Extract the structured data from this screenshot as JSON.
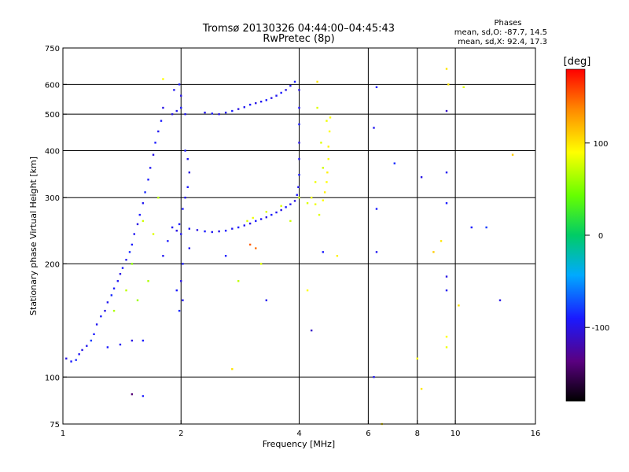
{
  "chart_data": {
    "type": "scatter",
    "title": "Tromsø 20130326 04:44:00–04:45:43",
    "subtitle": "RwPretec (8p)",
    "stats": {
      "heading": "Phases",
      "line_o": "mean, sd,O: -87.7, 14.5",
      "line_x": "mean, sd,X:  92.4, 17.3"
    },
    "xlabel": "Frequency [MHz]",
    "ylabel": "Stationary phase Virtual Height [km]",
    "x_scale": "log",
    "y_scale": "log",
    "xlim": [
      1,
      16
    ],
    "ylim": [
      75,
      750
    ],
    "x_ticks": [
      {
        "v": 1,
        "label": "1"
      },
      {
        "v": 2,
        "label": "2"
      },
      {
        "v": 4,
        "label": "4"
      },
      {
        "v": 6,
        "label": "6"
      },
      {
        "v": 8,
        "label": "8"
      },
      {
        "v": 10,
        "label": "10"
      },
      {
        "v": 16,
        "label": "16"
      }
    ],
    "y_ticks": [
      {
        "v": 75,
        "label": "75"
      },
      {
        "v": 100,
        "label": "100"
      },
      {
        "v": 200,
        "label": "200"
      },
      {
        "v": 300,
        "label": "300"
      },
      {
        "v": 400,
        "label": "400"
      },
      {
        "v": 500,
        "label": "500"
      },
      {
        "v": 600,
        "label": "600"
      },
      {
        "v": 750,
        "label": "750"
      }
    ],
    "x_gridlines": [
      2,
      4,
      6,
      8,
      10
    ],
    "y_gridlines": [
      100,
      200,
      300,
      400,
      500,
      600
    ],
    "colorbar": {
      "label": "[deg]",
      "min": -180,
      "max": 180,
      "ticks": [
        {
          "v": 100,
          "label": "100"
        },
        {
          "v": 0,
          "label": "0"
        },
        {
          "v": -100,
          "label": "-100"
        }
      ]
    },
    "series": [
      {
        "points": [
          [
            1.02,
            112,
            -100
          ],
          [
            1.05,
            110,
            -90
          ],
          [
            1.08,
            111,
            -85
          ],
          [
            1.1,
            115,
            -95
          ],
          [
            1.12,
            118,
            -100
          ],
          [
            1.15,
            121,
            -95
          ],
          [
            1.18,
            125,
            -80
          ],
          [
            1.2,
            130,
            -90
          ],
          [
            1.22,
            138,
            -95
          ],
          [
            1.25,
            145,
            -90
          ],
          [
            1.28,
            150,
            -100
          ],
          [
            1.3,
            158,
            -95
          ],
          [
            1.33,
            165,
            -85
          ],
          [
            1.35,
            172,
            -90
          ],
          [
            1.38,
            180,
            -95
          ],
          [
            1.4,
            188,
            -100
          ],
          [
            1.42,
            195,
            -90
          ],
          [
            1.45,
            205,
            -95
          ],
          [
            1.48,
            215,
            -85
          ],
          [
            1.5,
            225,
            -90
          ],
          [
            1.52,
            240,
            -95
          ],
          [
            1.55,
            255,
            -100
          ],
          [
            1.57,
            270,
            -90
          ],
          [
            1.6,
            290,
            -95
          ],
          [
            1.62,
            310,
            -85
          ],
          [
            1.65,
            335,
            -90
          ],
          [
            1.67,
            360,
            -95
          ],
          [
            1.7,
            390,
            -100
          ],
          [
            1.72,
            420,
            -90
          ],
          [
            1.75,
            450,
            -95
          ],
          [
            1.78,
            480,
            -90
          ],
          [
            1.8,
            520,
            -100
          ],
          [
            1.3,
            120,
            -90
          ],
          [
            1.4,
            122,
            -95
          ],
          [
            1.5,
            125,
            -100
          ],
          [
            1.6,
            125,
            -90
          ],
          [
            1.55,
            160,
            60
          ],
          [
            1.45,
            170,
            70
          ],
          [
            1.65,
            180,
            65
          ],
          [
            1.7,
            240,
            80
          ],
          [
            1.6,
            260,
            75
          ],
          [
            1.75,
            300,
            70
          ],
          [
            1.5,
            200,
            55
          ],
          [
            1.35,
            150,
            65
          ],
          [
            1.8,
            210,
            -95
          ],
          [
            1.85,
            230,
            -90
          ],
          [
            1.9,
            250,
            -95
          ],
          [
            1.95,
            245,
            -100
          ],
          [
            1.98,
            255,
            -90
          ],
          [
            2.0,
            240,
            -95
          ],
          [
            2.0,
            180,
            -100
          ],
          [
            2.02,
            200,
            -90
          ],
          [
            2.02,
            160,
            -95
          ],
          [
            1.98,
            150,
            -85
          ],
          [
            1.95,
            170,
            -90
          ],
          [
            1.9,
            500,
            -100
          ],
          [
            1.95,
            510,
            -95
          ],
          [
            2.0,
            520,
            -90
          ],
          [
            2.05,
            500,
            -95
          ],
          [
            2.0,
            560,
            -100
          ],
          [
            1.98,
            600,
            -90
          ],
          [
            1.92,
            580,
            -95
          ],
          [
            2.05,
            400,
            -90
          ],
          [
            2.08,
            380,
            -95
          ],
          [
            2.1,
            350,
            -100
          ],
          [
            2.08,
            320,
            -90
          ],
          [
            2.05,
            300,
            -95
          ],
          [
            2.02,
            280,
            -90
          ],
          [
            2.1,
            248,
            -95
          ],
          [
            2.2,
            246,
            -100
          ],
          [
            2.3,
            244,
            -90
          ],
          [
            2.4,
            243,
            -95
          ],
          [
            2.5,
            244,
            -100
          ],
          [
            2.6,
            245,
            -90
          ],
          [
            2.7,
            248,
            -95
          ],
          [
            2.8,
            250,
            -90
          ],
          [
            2.9,
            253,
            -95
          ],
          [
            3.0,
            256,
            -100
          ],
          [
            3.1,
            260,
            -90
          ],
          [
            3.2,
            263,
            -95
          ],
          [
            3.3,
            266,
            -100
          ],
          [
            3.4,
            270,
            -90
          ],
          [
            3.5,
            274,
            -95
          ],
          [
            3.6,
            278,
            -100
          ],
          [
            3.7,
            283,
            -90
          ],
          [
            3.8,
            288,
            -95
          ],
          [
            3.9,
            294,
            -100
          ],
          [
            3.95,
            305,
            -90
          ],
          [
            3.98,
            320,
            -95
          ],
          [
            4.0,
            345,
            -90
          ],
          [
            4.0,
            380,
            -95
          ],
          [
            4.0,
            420,
            -100
          ],
          [
            4.0,
            470,
            -90
          ],
          [
            4.0,
            520,
            -95
          ],
          [
            4.0,
            580,
            -100
          ],
          [
            3.9,
            610,
            -90
          ],
          [
            3.8,
            595,
            -95
          ],
          [
            3.7,
            580,
            -100
          ],
          [
            3.6,
            570,
            -90
          ],
          [
            3.5,
            560,
            -95
          ],
          [
            3.4,
            552,
            -100
          ],
          [
            3.3,
            545,
            -90
          ],
          [
            3.2,
            540,
            -95
          ],
          [
            3.1,
            535,
            -100
          ],
          [
            3.0,
            530,
            -90
          ],
          [
            2.9,
            522,
            -95
          ],
          [
            2.8,
            516,
            -100
          ],
          [
            2.7,
            510,
            -90
          ],
          [
            2.6,
            505,
            -95
          ],
          [
            2.5,
            500,
            -100
          ],
          [
            2.4,
            502,
            -90
          ],
          [
            2.3,
            505,
            -95
          ],
          [
            2.95,
            260,
            80
          ],
          [
            3.05,
            265,
            85
          ],
          [
            3.3,
            275,
            80
          ],
          [
            3.6,
            285,
            80
          ],
          [
            3.8,
            260,
            75
          ],
          [
            3.0,
            225,
            150
          ],
          [
            3.1,
            220,
            145
          ],
          [
            4.0,
            300,
            75
          ],
          [
            4.2,
            290,
            80
          ],
          [
            4.4,
            288,
            85
          ],
          [
            4.6,
            295,
            90
          ],
          [
            4.65,
            310,
            95
          ],
          [
            4.7,
            330,
            90
          ],
          [
            4.72,
            350,
            95
          ],
          [
            4.75,
            380,
            90
          ],
          [
            4.75,
            410,
            95
          ],
          [
            4.78,
            450,
            90
          ],
          [
            4.7,
            480,
            85
          ],
          [
            4.55,
            420,
            80
          ],
          [
            4.6,
            360,
            75
          ],
          [
            4.4,
            330,
            85
          ],
          [
            4.5,
            270,
            80
          ],
          [
            4.3,
            300,
            85
          ],
          [
            4.8,
            490,
            90
          ],
          [
            4.45,
            520,
            80
          ],
          [
            1.8,
            620,
            90
          ],
          [
            4.45,
            610,
            100
          ],
          [
            3.2,
            200,
            80
          ],
          [
            2.8,
            180,
            70
          ],
          [
            2.1,
            220,
            -95
          ],
          [
            2.6,
            210,
            -90
          ],
          [
            3.3,
            160,
            -95
          ],
          [
            4.6,
            215,
            -90
          ],
          [
            6.3,
            215,
            -95
          ],
          [
            6.3,
            280,
            -90
          ],
          [
            6.2,
            460,
            -95
          ],
          [
            6.3,
            590,
            -90
          ],
          [
            7.0,
            370,
            -85
          ],
          [
            8.2,
            340,
            -100
          ],
          [
            9.5,
            350,
            -95
          ],
          [
            9.5,
            290,
            -90
          ],
          [
            9.5,
            185,
            -100
          ],
          [
            9.5,
            170,
            -95
          ],
          [
            9.5,
            510,
            -110
          ],
          [
            9.5,
            660,
            100
          ],
          [
            9.6,
            600,
            100
          ],
          [
            10.5,
            590,
            80
          ],
          [
            11.0,
            250,
            -90
          ],
          [
            12.0,
            250,
            -80
          ],
          [
            13.0,
            160,
            -100
          ],
          [
            14.0,
            390,
            110
          ],
          [
            8.0,
            112,
            90
          ],
          [
            6.5,
            75,
            100
          ],
          [
            6.2,
            100,
            -95
          ],
          [
            4.3,
            133,
            -110
          ],
          [
            2.7,
            105,
            100
          ],
          [
            1.5,
            90,
            -140
          ],
          [
            1.6,
            89,
            -90
          ],
          [
            8.2,
            93,
            100
          ],
          [
            9.5,
            128,
            90
          ],
          [
            9.5,
            120,
            85
          ],
          [
            4.2,
            170,
            90
          ],
          [
            5.0,
            210,
            95
          ],
          [
            10.2,
            155,
            100
          ],
          [
            8.8,
            215,
            110
          ],
          [
            9.2,
            230,
            100
          ]
        ]
      }
    ]
  }
}
